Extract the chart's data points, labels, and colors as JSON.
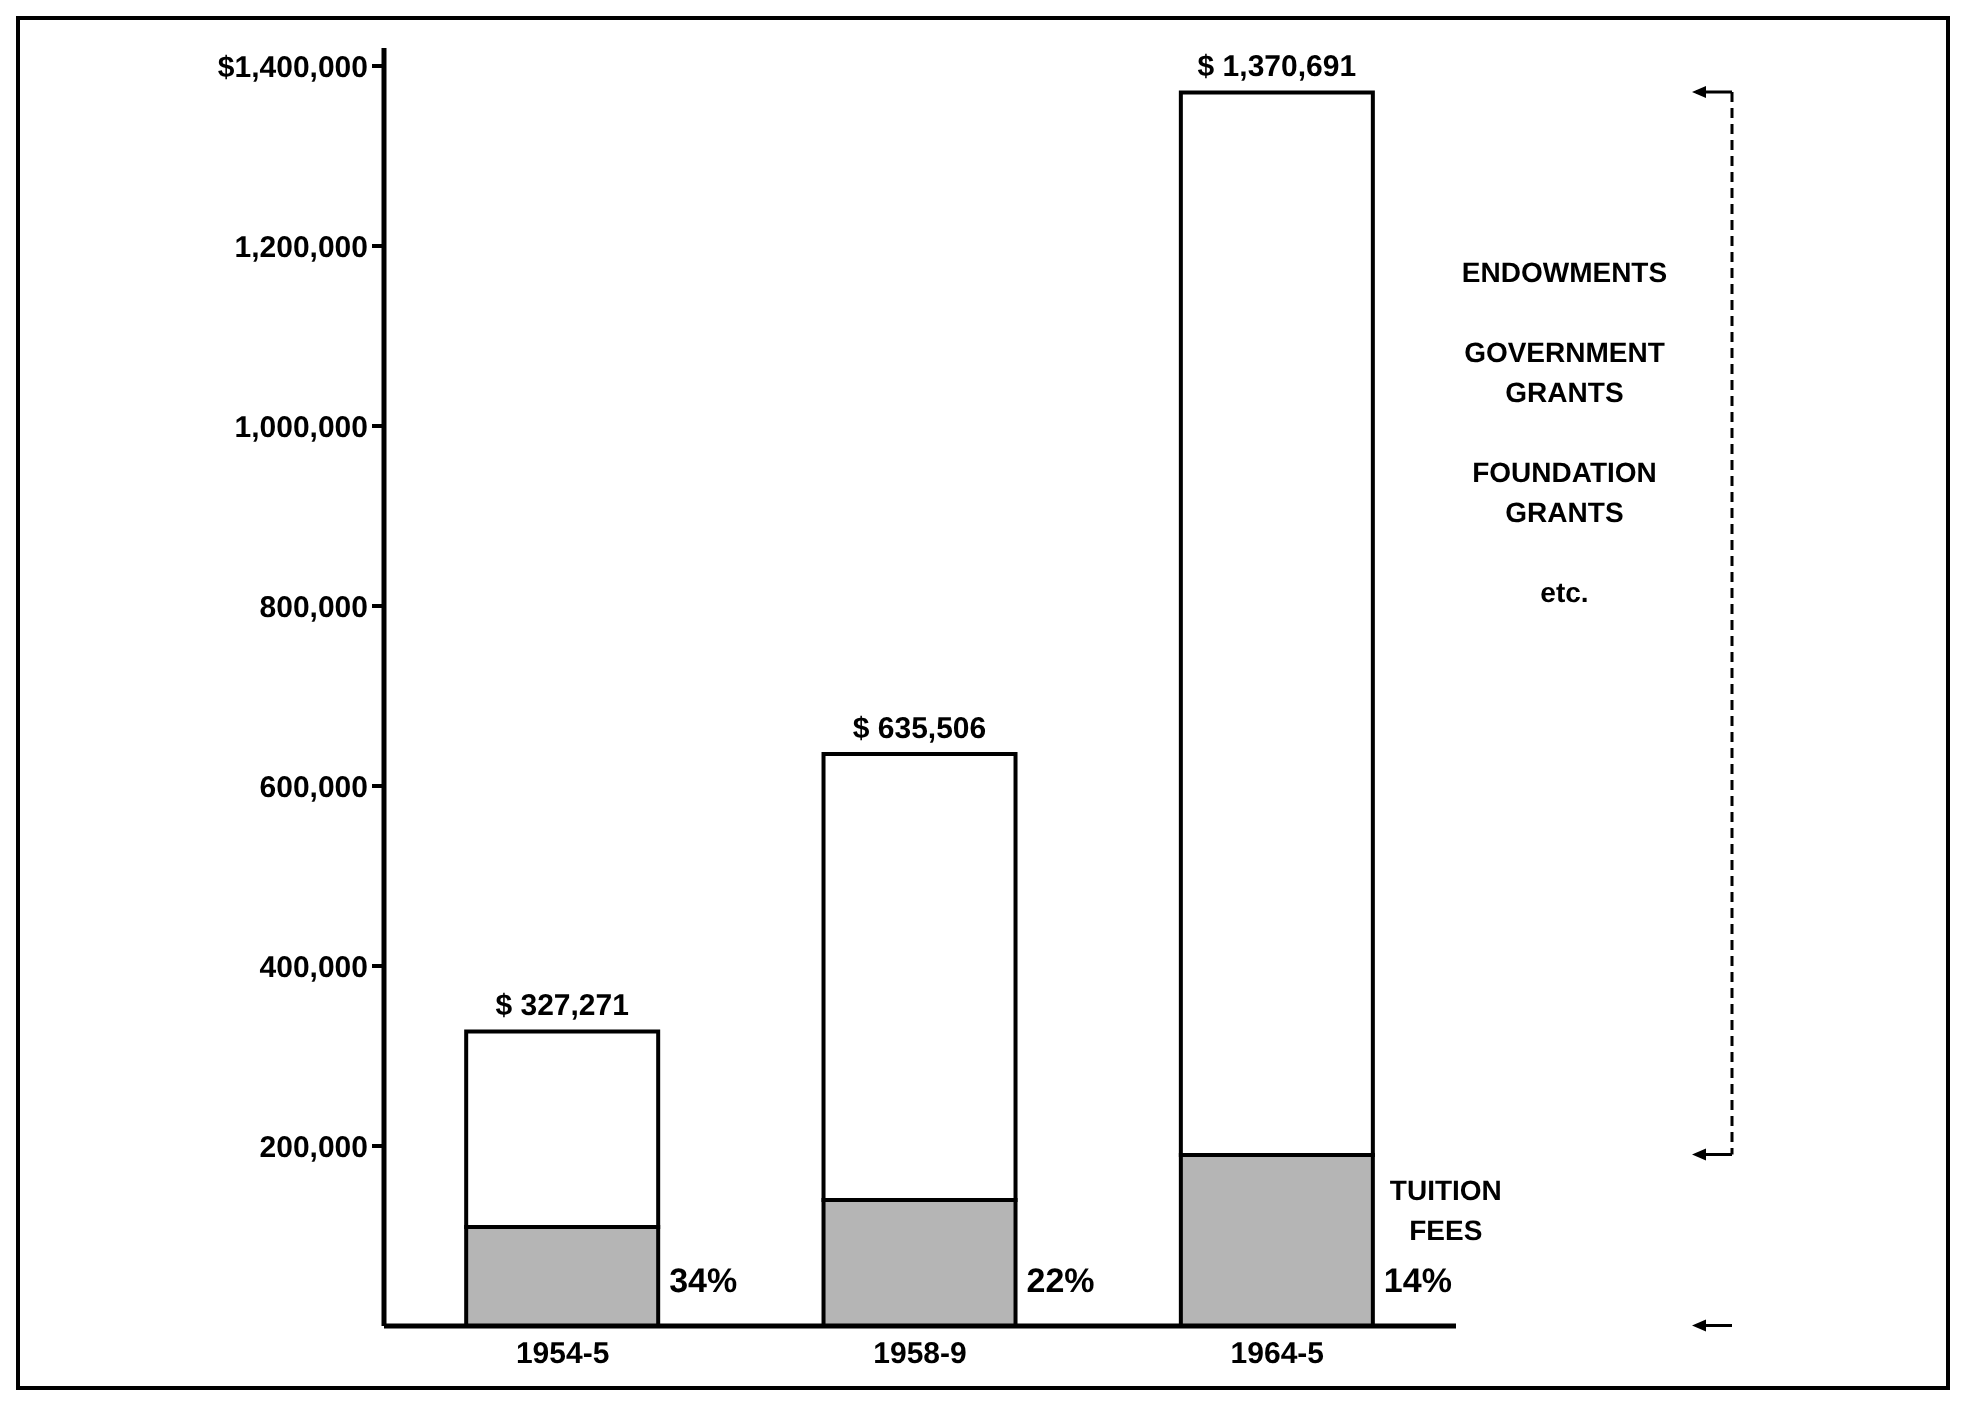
{
  "chart_data": {
    "type": "bar",
    "stacked": true,
    "categories": [
      "1954-5",
      "1958-9",
      "1964-5"
    ],
    "series": [
      {
        "name": "TUITION\nFEES",
        "color": "#b5b5b5",
        "values": [
          110000,
          140000,
          190000
        ]
      },
      {
        "name": "ENDOWMENTS\n\nGOVERNMENT\nGRANTS\n\nFOUNDATION\nGRANTS\n\netc.",
        "color": "#ffffff",
        "values": [
          217271,
          495506,
          1180691
        ]
      }
    ],
    "annotations": [
      "34%",
      "22%",
      "14%"
    ],
    "totals": [
      "$ 327,271",
      "$ 635,506",
      "$ 1,370,691"
    ],
    "ylim": [
      0,
      1420000
    ],
    "yticks": [
      {
        "value": 200000,
        "label": "200,000"
      },
      {
        "value": 400000,
        "label": "400,000"
      },
      {
        "value": 600000,
        "label": "600,000"
      },
      {
        "value": 800000,
        "label": "800,000"
      },
      {
        "value": 1000000,
        "label": "1,000,000"
      },
      {
        "value": 1200000,
        "label": "1,200,000"
      },
      {
        "value": 1400000,
        "label": "$1,400,000"
      }
    ],
    "grid": false,
    "legend": false
  }
}
